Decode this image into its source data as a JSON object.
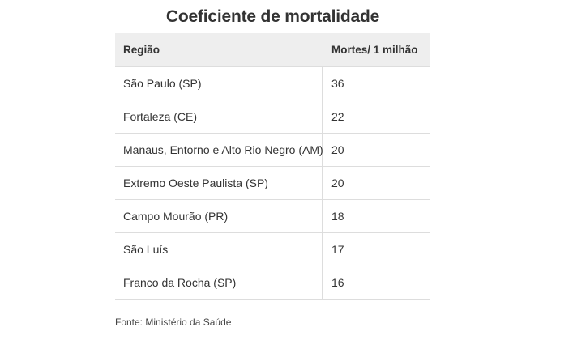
{
  "chart_data": {
    "type": "table",
    "title": "Coeficiente de mortalidade",
    "columns": [
      "Região",
      "Mortes/ 1 milhão"
    ],
    "rows": [
      {
        "region": "São Paulo (SP)",
        "value": 36
      },
      {
        "region": "Fortaleza (CE)",
        "value": 22
      },
      {
        "region": "Manaus, Entorno e Alto Rio Negro (AM)",
        "value": 20
      },
      {
        "region": "Extremo Oeste Paulista (SP)",
        "value": 20
      },
      {
        "region": "Campo Mourão (PR)",
        "value": 18
      },
      {
        "region": "São Luís",
        "value": 17
      },
      {
        "region": "Franco da Rocha (SP)",
        "value": 16
      }
    ],
    "source": "Fonte: Ministério da Saúde"
  }
}
